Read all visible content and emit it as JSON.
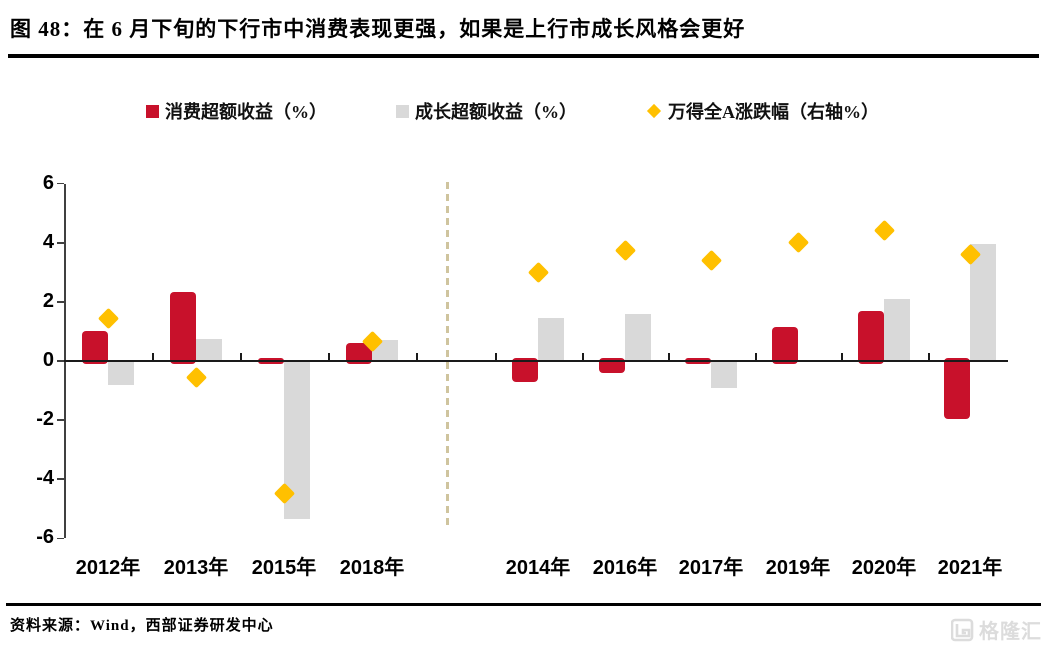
{
  "figure": {
    "title": "图 48：在 6 月下旬的下行市中消费表现更强，如果是上行市成长风格会更好",
    "source": "资料来源：Wind，西部证券研发中心",
    "watermark": "格隆汇"
  },
  "colors": {
    "consumption_red": "#C8112B",
    "growth_gray": "#D9D9D9",
    "windA_yellow": "#FFC000",
    "divider_tan": "#CFC49E"
  },
  "chart_data": {
    "type": "bar",
    "title": "图 48：在 6 月下旬的下行市中消费表现更强，如果是上行市成长风格会更好",
    "categories": [
      "2012年",
      "2013年",
      "2015年",
      "2018年",
      "2014年",
      "2016年",
      "2017年",
      "2019年",
      "2020年",
      "2021年"
    ],
    "divider_after_index": 3,
    "series": [
      {
        "name": "消费超额收益（%）",
        "type": "bar",
        "color": "#C8112B",
        "values": [
          1.0,
          2.35,
          0.1,
          0.6,
          -0.7,
          -0.4,
          -0.1,
          1.15,
          1.7,
          -1.95
        ]
      },
      {
        "name": "成长超额收益（%）",
        "type": "bar",
        "color": "#D9D9D9",
        "values": [
          -0.8,
          0.75,
          -5.35,
          0.7,
          1.45,
          1.6,
          -0.9,
          0,
          2.1,
          3.95
        ]
      },
      {
        "name": "万得全A涨跌幅（右轴%）",
        "type": "scatter",
        "marker": "diamond",
        "color": "#FFC000",
        "values": [
          1.45,
          -0.55,
          -4.5,
          0.65,
          3.0,
          3.75,
          3.4,
          4.0,
          4.4,
          3.6
        ]
      }
    ],
    "ylim": [
      -6,
      6
    ],
    "yticks": [
      6,
      4,
      2,
      0,
      -2,
      -4,
      -6
    ],
    "legend_position": "top",
    "grid": false
  }
}
